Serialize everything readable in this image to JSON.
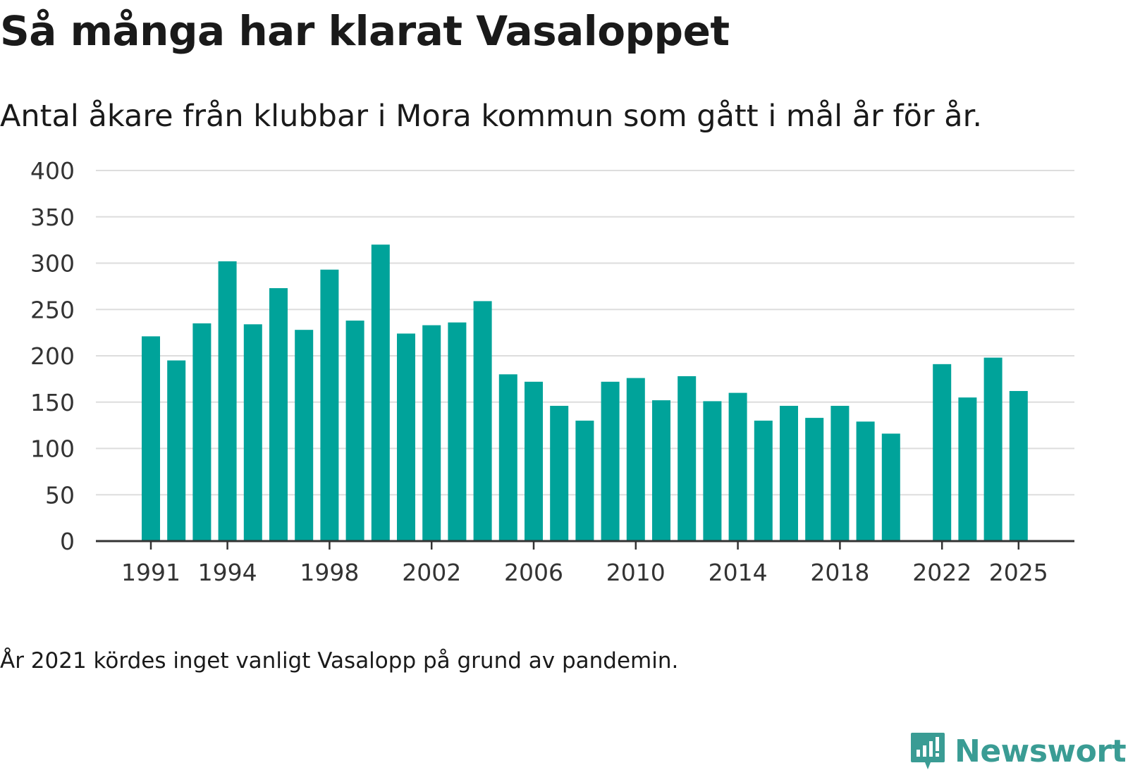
{
  "header": {
    "title": "Så många har klarat Vasaloppet",
    "subtitle": "Antal åkare från klubbar i Mora kommun som gått i mål år för år."
  },
  "footer": {
    "note": "År 2021 kördes inget vanligt Vasalopp på grund av pandemin.",
    "brand_name": "Newsworthy"
  },
  "colors": {
    "bar": "#00a39a",
    "grid": "#dddddd",
    "axis": "#333333",
    "brand": "#3a9c94"
  },
  "chart_data": {
    "type": "bar",
    "title": "Så många har klarat Vasaloppet",
    "xlabel": "",
    "ylabel": "",
    "ylim": [
      0,
      400
    ],
    "yticks": [
      0,
      50,
      100,
      150,
      200,
      250,
      300,
      350,
      400
    ],
    "xticks": [
      1991,
      1994,
      1998,
      2002,
      2006,
      2010,
      2014,
      2018,
      2022,
      2025
    ],
    "grid": true,
    "categories": [
      1991,
      1992,
      1993,
      1994,
      1995,
      1996,
      1997,
      1998,
      1999,
      2000,
      2001,
      2002,
      2003,
      2004,
      2005,
      2006,
      2007,
      2008,
      2009,
      2010,
      2011,
      2012,
      2013,
      2014,
      2015,
      2016,
      2017,
      2018,
      2019,
      2020,
      2021,
      2022,
      2023,
      2024,
      2025
    ],
    "values": [
      221,
      195,
      235,
      302,
      234,
      273,
      228,
      293,
      238,
      320,
      224,
      233,
      236,
      259,
      180,
      172,
      146,
      130,
      172,
      176,
      152,
      178,
      151,
      160,
      130,
      146,
      133,
      146,
      129,
      116,
      null,
      191,
      155,
      198,
      162
    ]
  }
}
